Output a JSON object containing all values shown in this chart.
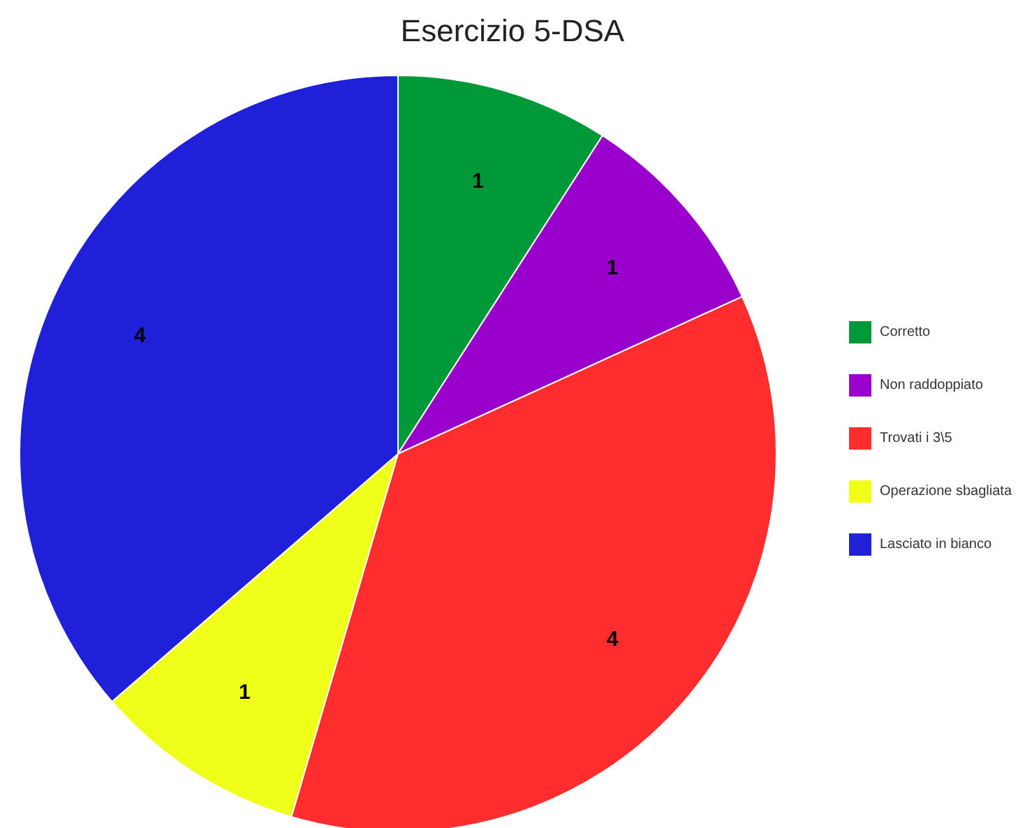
{
  "chart_data": {
    "type": "pie",
    "title": "Esercizio 5-DSA",
    "categories": [
      "Corretto",
      "Non raddoppiato",
      "Trovati i 3\\5",
      "Operazione sbagliata",
      "Lasciato in bianco"
    ],
    "values": [
      1,
      1,
      4,
      1,
      4
    ],
    "colors": [
      "#00993a",
      "#9900cc",
      "#ff2d2d",
      "#f0ff1a",
      "#2020d8"
    ],
    "data_labels": true,
    "legend": "right"
  }
}
